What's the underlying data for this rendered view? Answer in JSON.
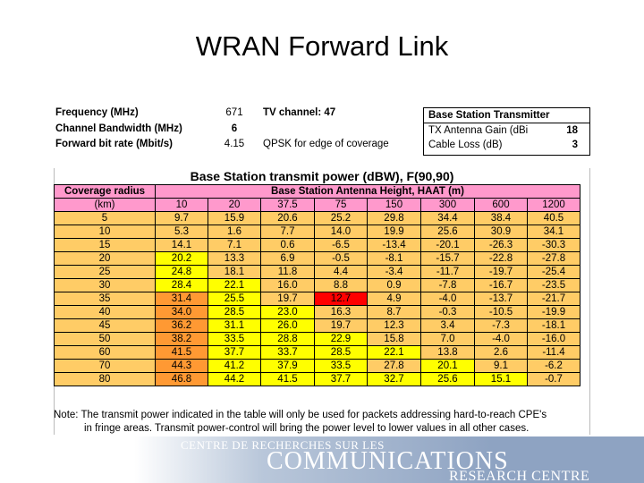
{
  "slide": {
    "title": "WRAN Forward Link"
  },
  "params": {
    "frequency": {
      "label": "Frequency (MHz)",
      "value": "671",
      "note": "TV channel: 47"
    },
    "bandwidth": {
      "label": "Channel Bandwidth (MHz)",
      "value": "6"
    },
    "bitrate": {
      "label": "Forward bit rate (Mbit/s)",
      "value": "4.15",
      "note": "QPSK for edge of coverage"
    }
  },
  "transmitter": {
    "title": "Base Station Transmitter",
    "rows": [
      {
        "label": "TX Antenna Gain (dBi",
        "value": "18"
      },
      {
        "label": "Cable Loss (dB)",
        "value": "3"
      }
    ]
  },
  "table": {
    "title": "Base Station transmit power (dBW), F(90,90)",
    "radius_header": "Coverage radius",
    "radius_unit": "(km)",
    "height_header": "Base Station Antenna Height, HAAT (m)",
    "heights": [
      "10",
      "20",
      "37.5",
      "75",
      "150",
      "300",
      "600",
      "1200"
    ],
    "rows": [
      {
        "r": "5",
        "v": [
          "9.7",
          "15.9",
          "20.6",
          "25.2",
          "29.8",
          "34.4",
          "38.4",
          "40.5"
        ]
      },
      {
        "r": "10",
        "v": [
          "5.3",
          "1.6",
          "7.7",
          "14.0",
          "19.9",
          "25.6",
          "30.9",
          "34.1"
        ]
      },
      {
        "r": "15",
        "v": [
          "14.1",
          "7.1",
          "0.6",
          "-6.5",
          "-13.4",
          "-20.1",
          "-26.3",
          "-30.3"
        ]
      },
      {
        "r": "20",
        "v": [
          "20.2",
          "13.3",
          "6.9",
          "-0.5",
          "-8.1",
          "-15.7",
          "-22.8",
          "-27.8"
        ]
      },
      {
        "r": "25",
        "v": [
          "24.8",
          "18.1",
          "11.8",
          "4.4",
          "-3.4",
          "-11.7",
          "-19.7",
          "-25.4"
        ]
      },
      {
        "r": "30",
        "v": [
          "28.4",
          "22.1",
          "16.0",
          "8.8",
          "0.9",
          "-7.8",
          "-16.7",
          "-23.5"
        ]
      },
      {
        "r": "35",
        "v": [
          "31.4",
          "25.5",
          "19.7",
          "12.7",
          "4.9",
          "-4.0",
          "-13.7",
          "-21.7"
        ]
      },
      {
        "r": "40",
        "v": [
          "34.0",
          "28.5",
          "23.0",
          "16.3",
          "8.7",
          "-0.3",
          "-10.5",
          "-19.9"
        ]
      },
      {
        "r": "45",
        "v": [
          "36.2",
          "31.1",
          "26.0",
          "19.7",
          "12.3",
          "3.4",
          "-7.3",
          "-18.1"
        ]
      },
      {
        "r": "50",
        "v": [
          "38.2",
          "33.5",
          "28.8",
          "22.9",
          "15.8",
          "7.0",
          "-4.0",
          "-16.0"
        ]
      },
      {
        "r": "60",
        "v": [
          "41.5",
          "37.7",
          "33.7",
          "28.5",
          "22.1",
          "13.8",
          "2.6",
          "-11.4"
        ]
      },
      {
        "r": "70",
        "v": [
          "44.3",
          "41.2",
          "37.9",
          "33.5",
          "27.8",
          "20.1",
          "9.1",
          "-6.2"
        ]
      },
      {
        "r": "80",
        "v": [
          "46.8",
          "44.2",
          "41.5",
          "37.7",
          "32.7",
          "25.6",
          "15.1",
          "-0.7"
        ]
      }
    ],
    "note_line1": "Note: The transmit power indicated in the table will only be used for packets addressing hard-to-reach CPE's",
    "note_line2": "in fringe areas.  Transmit power-control will bring the power level to lower values in all other cases."
  },
  "cell_colors": {
    "base": "#ffcc66",
    "header": "#ff99cc",
    "yellow": "#ffff00",
    "orange": "#ff9933",
    "red": "#ff0000"
  },
  "footer": {
    "line1": "CENTRE DE RECHERCHES SUR LES",
    "line2": "COMMUNICATIONS",
    "line3": "RESEARCH CENTRE",
    "logo_icon": "maple-leaf-icon"
  }
}
